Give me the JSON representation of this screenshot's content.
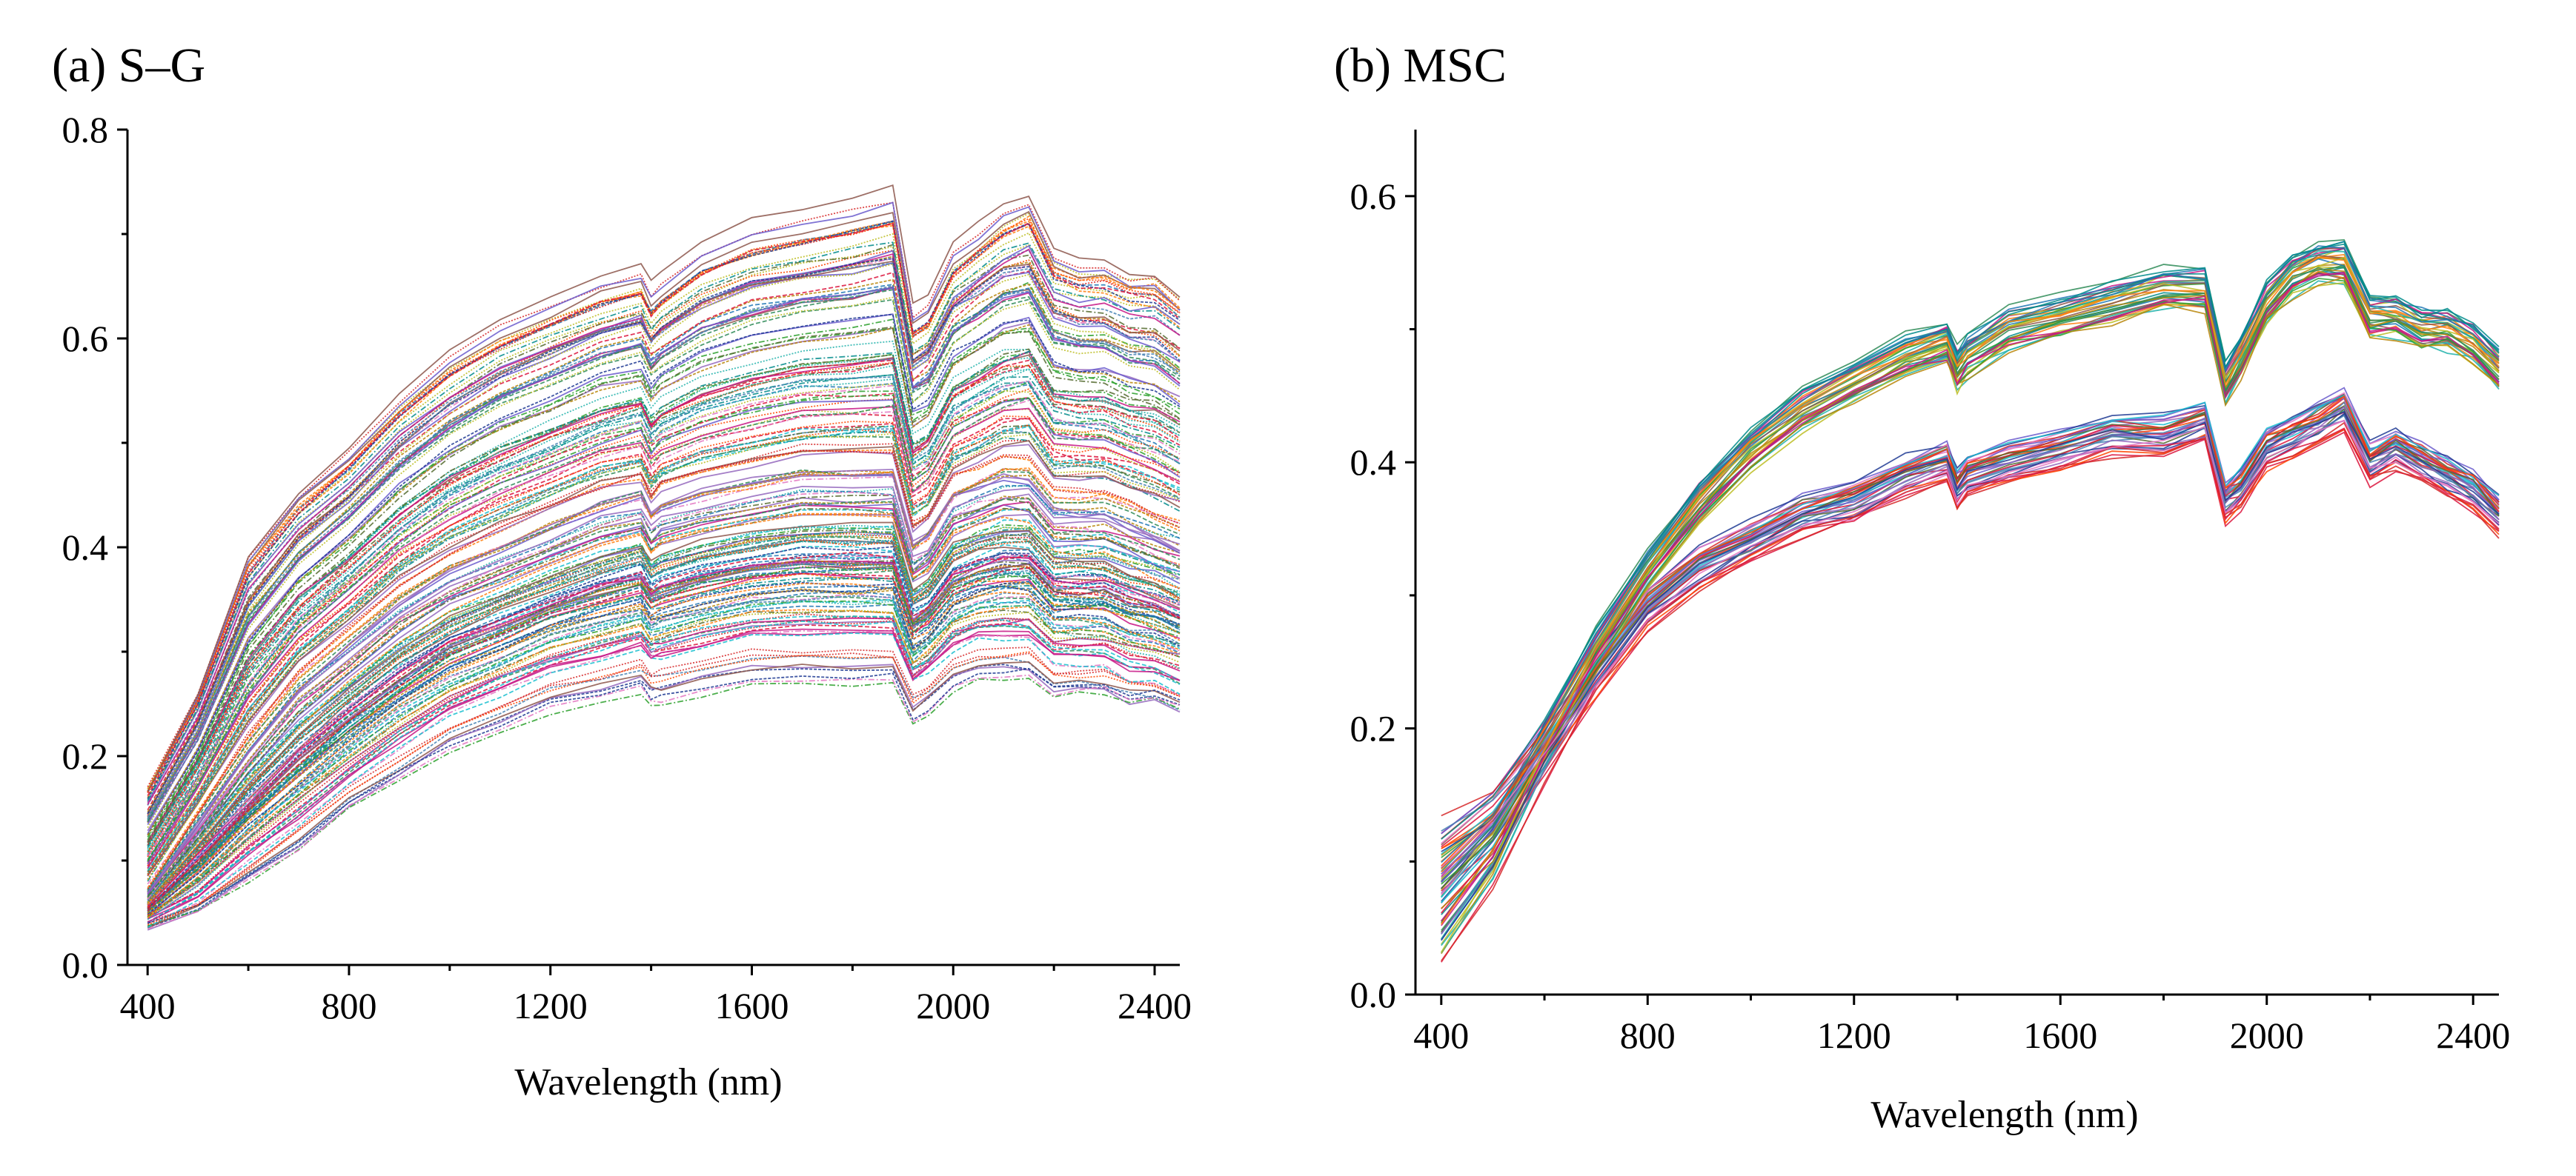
{
  "chart_data": [
    {
      "type": "line",
      "title": "(a) S–G",
      "xlabel": "Wavelength (nm)",
      "ylabel": "",
      "xlim": [
        360,
        2450
      ],
      "ylim": [
        0.0,
        0.8
      ],
      "xticks": [
        400,
        800,
        1200,
        1600,
        2000,
        2400
      ],
      "xtick_labels": [
        "400",
        "800",
        "1200",
        "1600",
        "2000",
        "2400"
      ],
      "yticks": [
        0.0,
        0.2,
        0.4,
        0.6,
        0.8
      ],
      "ytick_labels": [
        "0.0",
        "0.2",
        "0.4",
        "0.6",
        "0.8"
      ],
      "grid": false,
      "x": [
        400,
        500,
        600,
        700,
        800,
        900,
        1000,
        1100,
        1200,
        1300,
        1380,
        1400,
        1420,
        1500,
        1600,
        1700,
        1800,
        1880,
        1920,
        1950,
        2000,
        2050,
        2100,
        2150,
        2200,
        2250,
        2300,
        2350,
        2400,
        2450
      ],
      "series_count": 200,
      "envelope": {
        "upper": [
          0.17,
          0.26,
          0.39,
          0.45,
          0.49,
          0.54,
          0.58,
          0.61,
          0.63,
          0.65,
          0.66,
          0.64,
          0.65,
          0.68,
          0.7,
          0.71,
          0.72,
          0.73,
          0.62,
          0.63,
          0.68,
          0.7,
          0.72,
          0.73,
          0.68,
          0.67,
          0.67,
          0.66,
          0.66,
          0.64
        ],
        "middle": [
          0.07,
          0.14,
          0.21,
          0.27,
          0.31,
          0.35,
          0.38,
          0.4,
          0.42,
          0.44,
          0.45,
          0.43,
          0.44,
          0.45,
          0.46,
          0.47,
          0.47,
          0.47,
          0.4,
          0.41,
          0.45,
          0.46,
          0.47,
          0.47,
          0.44,
          0.44,
          0.44,
          0.43,
          0.42,
          0.41
        ],
        "lower": [
          0.035,
          0.05,
          0.08,
          0.11,
          0.15,
          0.18,
          0.21,
          0.23,
          0.25,
          0.26,
          0.27,
          0.26,
          0.26,
          0.27,
          0.28,
          0.28,
          0.28,
          0.28,
          0.24,
          0.25,
          0.27,
          0.28,
          0.28,
          0.28,
          0.26,
          0.26,
          0.26,
          0.25,
          0.25,
          0.24
        ]
      }
    },
    {
      "type": "line",
      "title": "(b) MSC",
      "xlabel": "Wavelength (nm)",
      "ylabel": "",
      "xlim": [
        350,
        2450
      ],
      "ylim": [
        0.0,
        0.65
      ],
      "xticks": [
        400,
        800,
        1200,
        1600,
        2000,
        2400
      ],
      "xtick_labels": [
        "400",
        "800",
        "1200",
        "1600",
        "2000",
        "2400"
      ],
      "yticks": [
        0.0,
        0.2,
        0.4,
        0.6
      ],
      "ytick_labels": [
        "0.0",
        "0.2",
        "0.4",
        "0.6"
      ],
      "grid": false,
      "x": [
        400,
        500,
        600,
        700,
        800,
        900,
        1000,
        1100,
        1200,
        1300,
        1380,
        1400,
        1420,
        1500,
        1600,
        1700,
        1800,
        1880,
        1920,
        1950,
        2000,
        2050,
        2100,
        2150,
        2200,
        2250,
        2300,
        2350,
        2400,
        2450
      ],
      "series_count": 70,
      "groups": [
        {
          "name": "upper group",
          "mean": [
            0.08,
            0.12,
            0.19,
            0.26,
            0.32,
            0.37,
            0.41,
            0.44,
            0.46,
            0.48,
            0.49,
            0.47,
            0.48,
            0.5,
            0.51,
            0.52,
            0.53,
            0.53,
            0.46,
            0.48,
            0.52,
            0.54,
            0.55,
            0.55,
            0.51,
            0.51,
            0.5,
            0.5,
            0.49,
            0.47
          ]
        },
        {
          "name": "lower group",
          "mean": [
            0.08,
            0.12,
            0.18,
            0.24,
            0.29,
            0.32,
            0.34,
            0.36,
            0.37,
            0.39,
            0.4,
            0.38,
            0.39,
            0.4,
            0.41,
            0.42,
            0.42,
            0.43,
            0.37,
            0.38,
            0.41,
            0.42,
            0.43,
            0.44,
            0.4,
            0.41,
            0.4,
            0.39,
            0.38,
            0.36
          ]
        }
      ]
    }
  ]
}
